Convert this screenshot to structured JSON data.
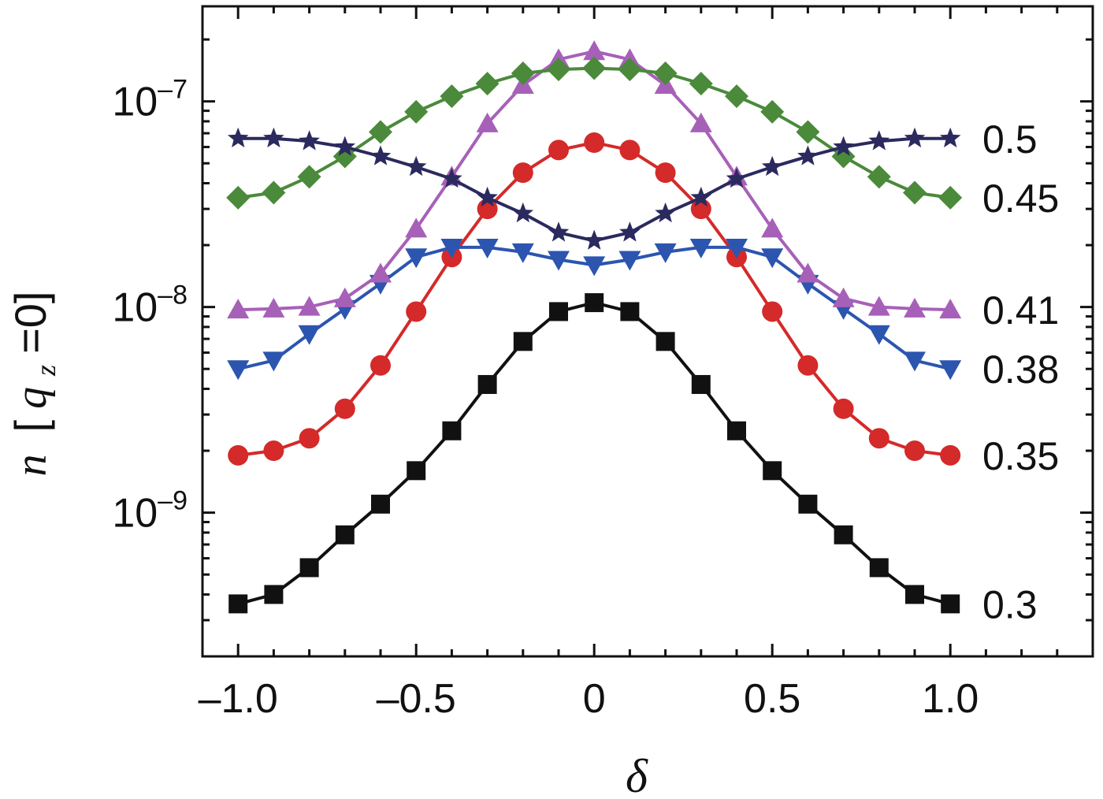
{
  "chart_data": {
    "type": "line",
    "xlabel": "δ",
    "ylabel": "n [q_z=0]",
    "ylabel_parts": {
      "n": "n",
      "open": "[",
      "q": "q",
      "sub": "z",
      "rest": "=0]"
    },
    "y_scale": "log",
    "xlim": [
      -1.1,
      1.4
    ],
    "ylim": [
      2e-10,
      2.9e-07
    ],
    "x_ticks": [
      {
        "value": -1.0,
        "label": "–1.0"
      },
      {
        "value": -0.5,
        "label": "–0.5"
      },
      {
        "value": 0,
        "label": "0"
      },
      {
        "value": 0.5,
        "label": "0.5"
      },
      {
        "value": 1.0,
        "label": "1.0"
      }
    ],
    "y_ticks": [
      {
        "value": 1e-09,
        "label_base": "10",
        "label_exp": "–9"
      },
      {
        "value": 1e-08,
        "label_base": "10",
        "label_exp": "–8"
      },
      {
        "value": 1e-07,
        "label_base": "10",
        "label_exp": "–7"
      }
    ],
    "grid": false,
    "legend": "inline labels at right",
    "x": [
      -1.0,
      -0.9,
      -0.8,
      -0.7,
      -0.6,
      -0.5,
      -0.4,
      -0.3,
      -0.2,
      -0.1,
      0.0,
      0.1,
      0.2,
      0.3,
      0.4,
      0.5,
      0.6,
      0.7,
      0.8,
      0.9,
      1.0
    ],
    "series": [
      {
        "name": "0.3",
        "color": "#111111",
        "marker": "square",
        "values": [
          3.6e-10,
          4e-10,
          5.4e-10,
          7.8e-10,
          1.1e-09,
          1.6e-09,
          2.5e-09,
          4.2e-09,
          6.8e-09,
          9.5e-09,
          1.05e-08,
          9.5e-09,
          6.8e-09,
          4.2e-09,
          2.5e-09,
          1.6e-09,
          1.1e-09,
          7.8e-10,
          5.4e-10,
          4e-10,
          3.6e-10
        ]
      },
      {
        "name": "0.35",
        "color": "#d42a2a",
        "marker": "circle",
        "values": [
          1.9e-09,
          2e-09,
          2.3e-09,
          3.2e-09,
          5.2e-09,
          9.5e-09,
          1.75e-08,
          3e-08,
          4.5e-08,
          5.8e-08,
          6.3e-08,
          5.8e-08,
          4.5e-08,
          3e-08,
          1.75e-08,
          9.5e-09,
          5.2e-09,
          3.2e-09,
          2.3e-09,
          2e-09,
          1.9e-09
        ]
      },
      {
        "name": "0.38",
        "color": "#2c55b0",
        "marker": "triangle-down",
        "values": [
          5e-09,
          5.5e-09,
          7.4e-09,
          9.8e-09,
          1.3e-08,
          1.75e-08,
          1.95e-08,
          1.95e-08,
          1.85e-08,
          1.7e-08,
          1.6e-08,
          1.7e-08,
          1.85e-08,
          1.95e-08,
          1.95e-08,
          1.75e-08,
          1.3e-08,
          9.8e-09,
          7.4e-09,
          5.5e-09,
          5e-09
        ]
      },
      {
        "name": "0.41",
        "color": "#a760b8",
        "marker": "triangle-up",
        "values": [
          9.7e-09,
          9.8e-09,
          1e-08,
          1.1e-08,
          1.45e-08,
          2.4e-08,
          4.3e-08,
          7.8e-08,
          1.2e-07,
          1.6e-07,
          1.75e-07,
          1.6e-07,
          1.2e-07,
          7.8e-08,
          4.3e-08,
          2.4e-08,
          1.45e-08,
          1.1e-08,
          1e-08,
          9.8e-09,
          9.7e-09
        ]
      },
      {
        "name": "0.45",
        "color": "#4a8a3a",
        "marker": "diamond",
        "values": [
          3.4e-08,
          3.6e-08,
          4.3e-08,
          5.4e-08,
          7.1e-08,
          8.9e-08,
          1.06e-07,
          1.22e-07,
          1.37e-07,
          1.43e-07,
          1.45e-07,
          1.43e-07,
          1.37e-07,
          1.22e-07,
          1.06e-07,
          8.9e-08,
          7.1e-08,
          5.4e-08,
          4.3e-08,
          3.6e-08,
          3.4e-08
        ]
      },
      {
        "name": "0.5",
        "color": "#2a2a5e",
        "marker": "star",
        "values": [
          6.6e-08,
          6.6e-08,
          6.4e-08,
          6e-08,
          5.4e-08,
          4.8e-08,
          4.2e-08,
          3.4e-08,
          2.85e-08,
          2.3e-08,
          2.1e-08,
          2.3e-08,
          2.85e-08,
          3.4e-08,
          4.2e-08,
          4.8e-08,
          5.4e-08,
          6e-08,
          6.4e-08,
          6.6e-08,
          6.6e-08
        ]
      }
    ]
  }
}
